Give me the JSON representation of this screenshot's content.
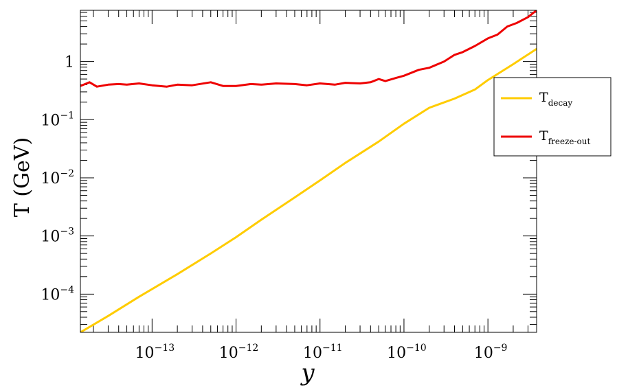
{
  "chart_data": {
    "type": "line",
    "title": "",
    "xlabel": "y",
    "ylabel": "T (GeV)",
    "x_scale": "log",
    "y_scale": "log",
    "xlim": [
      1.4e-14,
      3.8e-09
    ],
    "ylim": [
      2.2e-05,
      7.6
    ],
    "grid": false,
    "legend_position": "right",
    "x_ticks": [
      {
        "value": 1e-13,
        "base": "10",
        "exp": "−13"
      },
      {
        "value": 1e-12,
        "base": "10",
        "exp": "−12"
      },
      {
        "value": 1e-11,
        "base": "10",
        "exp": "−11"
      },
      {
        "value": 1e-10,
        "base": "10",
        "exp": "−10"
      },
      {
        "value": 1e-09,
        "base": "10",
        "exp": "−9"
      }
    ],
    "y_ticks": [
      {
        "value": 1,
        "base": "1",
        "exp": ""
      },
      {
        "value": 0.1,
        "base": "10",
        "exp": "−1"
      },
      {
        "value": 0.01,
        "base": "10",
        "exp": "−2"
      },
      {
        "value": 0.001,
        "base": "10",
        "exp": "−3"
      },
      {
        "value": 0.0001,
        "base": "10",
        "exp": "−4"
      }
    ],
    "series": [
      {
        "name": "decay",
        "legend_main": "T",
        "legend_sub": "decay",
        "color": "#ffcc00",
        "x": [
          1.4e-14,
          3e-14,
          7e-14,
          2e-13,
          5e-13,
          1e-12,
          2e-12,
          5e-12,
          1e-11,
          2e-11,
          5e-11,
          1e-10,
          2e-10,
          4e-10,
          7e-10,
          1e-09,
          2e-09,
          3.8e-09
        ],
        "y": [
          2.2e-05,
          4.2e-05,
          9e-05,
          0.00022,
          0.0005,
          0.00095,
          0.0019,
          0.0046,
          0.009,
          0.018,
          0.042,
          0.085,
          0.16,
          0.23,
          0.33,
          0.48,
          0.9,
          1.65
        ]
      },
      {
        "name": "freeze-out",
        "legend_main": "T",
        "legend_sub": "freeze-out",
        "color": "#ee0000",
        "x": [
          1.4e-14,
          1.8e-14,
          2.2e-14,
          3e-14,
          4e-14,
          5e-14,
          7e-14,
          1e-13,
          1.5e-13,
          2e-13,
          3e-13,
          5e-13,
          7e-13,
          1e-12,
          1.5e-12,
          2e-12,
          3e-12,
          5e-12,
          7e-12,
          1e-11,
          1.5e-11,
          2e-11,
          3e-11,
          4e-11,
          5e-11,
          6e-11,
          8e-11,
          1e-10,
          1.5e-10,
          2e-10,
          3e-10,
          4e-10,
          5e-10,
          7e-10,
          1e-09,
          1.3e-09,
          1.7e-09,
          2.2e-09,
          3e-09,
          3.8e-09
        ],
        "y": [
          0.38,
          0.44,
          0.37,
          0.4,
          0.41,
          0.4,
          0.42,
          0.39,
          0.37,
          0.4,
          0.39,
          0.44,
          0.38,
          0.38,
          0.41,
          0.4,
          0.42,
          0.41,
          0.39,
          0.42,
          0.4,
          0.43,
          0.42,
          0.44,
          0.5,
          0.46,
          0.52,
          0.57,
          0.72,
          0.78,
          1.0,
          1.3,
          1.45,
          1.85,
          2.5,
          2.9,
          4.0,
          4.6,
          5.8,
          7.6
        ]
      }
    ]
  }
}
